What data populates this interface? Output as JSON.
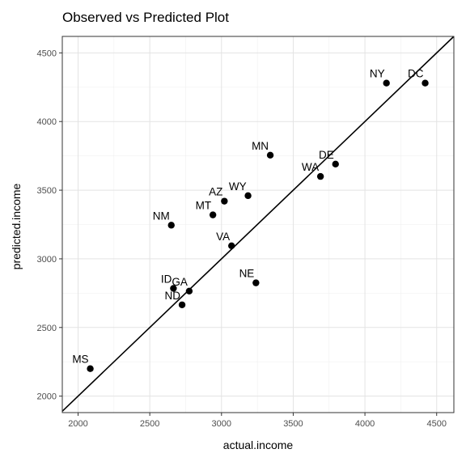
{
  "chart_data": {
    "type": "scatter",
    "title": "Observed vs Predicted Plot",
    "xlabel": "actual.income",
    "ylabel": "predicted.income",
    "xlim": [
      1890,
      4620
    ],
    "ylim": [
      1880,
      4620
    ],
    "xticks": [
      2000,
      2500,
      3000,
      3500,
      4000,
      4500
    ],
    "yticks": [
      2000,
      2500,
      3000,
      3500,
      4000,
      4500
    ],
    "grid": true,
    "reference_line": {
      "type": "identity",
      "slope": 1,
      "intercept": 0
    },
    "points": [
      {
        "label": "NY",
        "x": 4150,
        "y": 4280
      },
      {
        "label": "DC",
        "x": 4420,
        "y": 4280
      },
      {
        "label": "MN",
        "x": 3340,
        "y": 3755
      },
      {
        "label": "DE",
        "x": 3795,
        "y": 3690
      },
      {
        "label": "WA",
        "x": 3690,
        "y": 3600
      },
      {
        "label": "WY",
        "x": 3185,
        "y": 3460
      },
      {
        "label": "AZ",
        "x": 3020,
        "y": 3420
      },
      {
        "label": "MT",
        "x": 2940,
        "y": 3320
      },
      {
        "label": "NM",
        "x": 2650,
        "y": 3245
      },
      {
        "label": "VA",
        "x": 3070,
        "y": 3095
      },
      {
        "label": "NE",
        "x": 3240,
        "y": 2825
      },
      {
        "label": "ID",
        "x": 2665,
        "y": 2785
      },
      {
        "label": "GA",
        "x": 2775,
        "y": 2765
      },
      {
        "label": "ND",
        "x": 2725,
        "y": 2665
      },
      {
        "label": "MS",
        "x": 2085,
        "y": 2200
      }
    ]
  }
}
